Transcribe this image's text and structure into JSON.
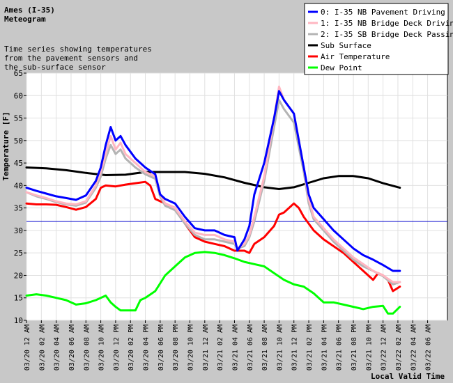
{
  "chart_data": {
    "type": "line",
    "title": "Ames (I-35)",
    "subtitle": "Meteogram",
    "description_lines": [
      "Time series showing temperatures",
      "   from the pavement sensors and",
      "    the sub-surface sensor"
    ],
    "ylabel": "Temperature [F]",
    "xlabel": "Local Valid Time",
    "ylim": [
      10,
      65
    ],
    "yticks": [
      10,
      15,
      20,
      25,
      30,
      35,
      40,
      45,
      50,
      55,
      60,
      65
    ],
    "xlim": [
      0,
      42.5
    ],
    "xtick_labels": [
      "03/20 12 AM",
      "03/20 02 AM",
      "03/20 04 AM",
      "03/20 06 AM",
      "03/20 08 AM",
      "03/20 10 AM",
      "03/20 12 PM",
      "03/20 02 PM",
      "03/20 04 PM",
      "03/20 06 PM",
      "03/20 08 PM",
      "03/20 10 PM",
      "03/21 12 AM",
      "03/21 02 AM",
      "03/21 04 AM",
      "03/21 06 AM",
      "03/21 08 AM",
      "03/21 10 AM",
      "03/21 12 PM",
      "03/21 02 PM",
      "03/21 04 PM",
      "03/21 06 PM",
      "03/21 08 PM",
      "03/21 10 PM",
      "03/22 12 AM",
      "03/22 02 AM",
      "03/22 04 AM",
      "03/22 06 AM"
    ],
    "reference_line": {
      "y": 32,
      "color": "#0000cc"
    },
    "grid": true,
    "legend_position": "top-right",
    "series": [
      {
        "name": "0: I-35 NB Pavement Driving",
        "color": "#0000ff",
        "width": 3,
        "points": [
          [
            0,
            39.5
          ],
          [
            1,
            38.8
          ],
          [
            2,
            38.2
          ],
          [
            3,
            37.6
          ],
          [
            4,
            37.2
          ],
          [
            5,
            36.8
          ],
          [
            6,
            37.8
          ],
          [
            7,
            41
          ],
          [
            7.5,
            44
          ],
          [
            8,
            49
          ],
          [
            8.5,
            53
          ],
          [
            9,
            50
          ],
          [
            9.5,
            51
          ],
          [
            10,
            49
          ],
          [
            11,
            46
          ],
          [
            12,
            44
          ],
          [
            13,
            42.5
          ],
          [
            13.5,
            38
          ],
          [
            14,
            37
          ],
          [
            15,
            36
          ],
          [
            16,
            33
          ],
          [
            17,
            30.5
          ],
          [
            18,
            30
          ],
          [
            19,
            30
          ],
          [
            20,
            29
          ],
          [
            21,
            28.5
          ],
          [
            21.3,
            25.5
          ],
          [
            22,
            28
          ],
          [
            22.5,
            31
          ],
          [
            23,
            38
          ],
          [
            24,
            45
          ],
          [
            25,
            55
          ],
          [
            25.5,
            61
          ],
          [
            26,
            59
          ],
          [
            27,
            56
          ],
          [
            28,
            44
          ],
          [
            28.5,
            38
          ],
          [
            29,
            35
          ],
          [
            30,
            32.5
          ],
          [
            31,
            30
          ],
          [
            32,
            28
          ],
          [
            33,
            26
          ],
          [
            34,
            24.5
          ],
          [
            35,
            23.5
          ],
          [
            36,
            22.3
          ],
          [
            37,
            21
          ],
          [
            37.7,
            21
          ]
        ]
      },
      {
        "name": "1: I-35 NB Bridge Deck Driving",
        "color": "#ffb6c1",
        "width": 3,
        "points": [
          [
            0,
            38.5
          ],
          [
            1,
            37.8
          ],
          [
            2,
            37.2
          ],
          [
            3,
            36.5
          ],
          [
            4,
            36
          ],
          [
            5,
            35.8
          ],
          [
            6,
            36.5
          ],
          [
            7,
            40
          ],
          [
            7.5,
            43
          ],
          [
            8,
            47
          ],
          [
            8.5,
            51
          ],
          [
            9,
            48
          ],
          [
            9.5,
            49.5
          ],
          [
            10,
            47
          ],
          [
            11,
            45
          ],
          [
            12,
            43
          ],
          [
            13,
            42
          ],
          [
            13.5,
            38
          ],
          [
            14,
            36
          ],
          [
            15,
            35
          ],
          [
            16,
            32
          ],
          [
            17,
            29.5
          ],
          [
            18,
            29
          ],
          [
            19,
            29
          ],
          [
            20,
            28
          ],
          [
            21,
            27.5
          ],
          [
            21.3,
            26
          ],
          [
            22,
            27
          ],
          [
            22.5,
            29
          ],
          [
            23,
            33
          ],
          [
            24,
            42
          ],
          [
            25,
            55
          ],
          [
            25.5,
            62
          ],
          [
            26,
            59
          ],
          [
            27,
            56
          ],
          [
            28,
            44
          ],
          [
            28.5,
            37
          ],
          [
            29,
            33
          ],
          [
            30,
            30.5
          ],
          [
            31,
            28
          ],
          [
            32,
            26
          ],
          [
            33,
            24
          ],
          [
            34,
            22.5
          ],
          [
            35,
            21
          ],
          [
            36,
            20
          ],
          [
            37,
            18.5
          ],
          [
            37.7,
            18.5
          ]
        ]
      },
      {
        "name": "2: I-35 SB Bridge Deck Passing",
        "color": "#b4b4b4",
        "width": 3,
        "points": [
          [
            0,
            38.5
          ],
          [
            1,
            37.6
          ],
          [
            2,
            37
          ],
          [
            3,
            36.3
          ],
          [
            4,
            35.8
          ],
          [
            5,
            35.5
          ],
          [
            6,
            36.2
          ],
          [
            7,
            39.5
          ],
          [
            7.5,
            42
          ],
          [
            8,
            46
          ],
          [
            8.5,
            49
          ],
          [
            9,
            47
          ],
          [
            9.5,
            48
          ],
          [
            10,
            46
          ],
          [
            11,
            44
          ],
          [
            12,
            42.5
          ],
          [
            13,
            41.5
          ],
          [
            13.5,
            37.5
          ],
          [
            14,
            35.5
          ],
          [
            15,
            34.5
          ],
          [
            16,
            31.5
          ],
          [
            17,
            29
          ],
          [
            18,
            28
          ],
          [
            19,
            28
          ],
          [
            20,
            27.5
          ],
          [
            21,
            27
          ],
          [
            21.3,
            26
          ],
          [
            22,
            26.5
          ],
          [
            22.5,
            28.5
          ],
          [
            23,
            32
          ],
          [
            24,
            41
          ],
          [
            25,
            53
          ],
          [
            25.5,
            59
          ],
          [
            26,
            57
          ],
          [
            27,
            54
          ],
          [
            28,
            43
          ],
          [
            28.5,
            36
          ],
          [
            29,
            32.5
          ],
          [
            30,
            30
          ],
          [
            31,
            27.5
          ],
          [
            32,
            25.5
          ],
          [
            33,
            23.5
          ],
          [
            34,
            22
          ],
          [
            35,
            21
          ],
          [
            36,
            19.8
          ],
          [
            37,
            18
          ],
          [
            37.7,
            18.5
          ]
        ]
      },
      {
        "name": "Sub Surface",
        "color": "#000000",
        "width": 3,
        "points": [
          [
            0,
            44
          ],
          [
            2,
            43.8
          ],
          [
            4,
            43.4
          ],
          [
            6,
            42.8
          ],
          [
            8,
            42.3
          ],
          [
            10,
            42.4
          ],
          [
            12,
            43
          ],
          [
            14,
            43
          ],
          [
            16,
            43
          ],
          [
            18,
            42.6
          ],
          [
            20,
            41.8
          ],
          [
            22,
            40.6
          ],
          [
            24,
            39.6
          ],
          [
            25.5,
            39.2
          ],
          [
            27,
            39.6
          ],
          [
            28.5,
            40.6
          ],
          [
            30,
            41.6
          ],
          [
            31.5,
            42.1
          ],
          [
            33,
            42.1
          ],
          [
            34.5,
            41.6
          ],
          [
            36,
            40.5
          ],
          [
            37.7,
            39.5
          ]
        ]
      },
      {
        "name": "Air Temperature",
        "color": "#ff0000",
        "width": 3,
        "points": [
          [
            0,
            36
          ],
          [
            1,
            35.8
          ],
          [
            2,
            35.8
          ],
          [
            3,
            35.7
          ],
          [
            4,
            35.2
          ],
          [
            5,
            34.6
          ],
          [
            6,
            35.2
          ],
          [
            7,
            37
          ],
          [
            7.5,
            39.5
          ],
          [
            8,
            40
          ],
          [
            9,
            39.8
          ],
          [
            10,
            40.2
          ],
          [
            11,
            40.5
          ],
          [
            12,
            40.8
          ],
          [
            12.5,
            40
          ],
          [
            13,
            37
          ],
          [
            14,
            36
          ],
          [
            15,
            35
          ],
          [
            16,
            31.5
          ],
          [
            17,
            28.5
          ],
          [
            18,
            27.5
          ],
          [
            19,
            27
          ],
          [
            20,
            26.5
          ],
          [
            21,
            25.5
          ],
          [
            21.3,
            25.5
          ],
          [
            22,
            25.5
          ],
          [
            22.5,
            25
          ],
          [
            23,
            27
          ],
          [
            24,
            28.5
          ],
          [
            25,
            31
          ],
          [
            25.5,
            33.5
          ],
          [
            26,
            34
          ],
          [
            27,
            36
          ],
          [
            27.5,
            35
          ],
          [
            28,
            33
          ],
          [
            29,
            30
          ],
          [
            30,
            28
          ],
          [
            31,
            26.5
          ],
          [
            32,
            25
          ],
          [
            33,
            23
          ],
          [
            34,
            21
          ],
          [
            35,
            19
          ],
          [
            35.5,
            20.5
          ],
          [
            36,
            20
          ],
          [
            36.5,
            19
          ],
          [
            37,
            16.5
          ],
          [
            37.7,
            17.5
          ]
        ]
      },
      {
        "name": "Dew Point",
        "color": "#00ff00",
        "width": 3,
        "points": [
          [
            0,
            15.5
          ],
          [
            1,
            15.8
          ],
          [
            2,
            15.5
          ],
          [
            3,
            15
          ],
          [
            4,
            14.5
          ],
          [
            5,
            13.5
          ],
          [
            6,
            13.8
          ],
          [
            7,
            14.5
          ],
          [
            8,
            15.5
          ],
          [
            8.5,
            14
          ],
          [
            9,
            13
          ],
          [
            9.5,
            12.2
          ],
          [
            10,
            12.2
          ],
          [
            11,
            12.2
          ],
          [
            11.5,
            14.5
          ],
          [
            12,
            15
          ],
          [
            13,
            16.5
          ],
          [
            14,
            20
          ],
          [
            15,
            22
          ],
          [
            16,
            24
          ],
          [
            17,
            25
          ],
          [
            18,
            25.2
          ],
          [
            19,
            25
          ],
          [
            20,
            24.5
          ],
          [
            21,
            23.8
          ],
          [
            22,
            23
          ],
          [
            23,
            22.5
          ],
          [
            24,
            22
          ],
          [
            25,
            20.5
          ],
          [
            26,
            19
          ],
          [
            27,
            18
          ],
          [
            28,
            17.5
          ],
          [
            29,
            16
          ],
          [
            30,
            14
          ],
          [
            31,
            14
          ],
          [
            32,
            13.5
          ],
          [
            33,
            13
          ],
          [
            34,
            12.5
          ],
          [
            35,
            13
          ],
          [
            36,
            13.2
          ],
          [
            36.5,
            11.5
          ],
          [
            37,
            11.5
          ],
          [
            37.7,
            13
          ]
        ]
      }
    ]
  }
}
